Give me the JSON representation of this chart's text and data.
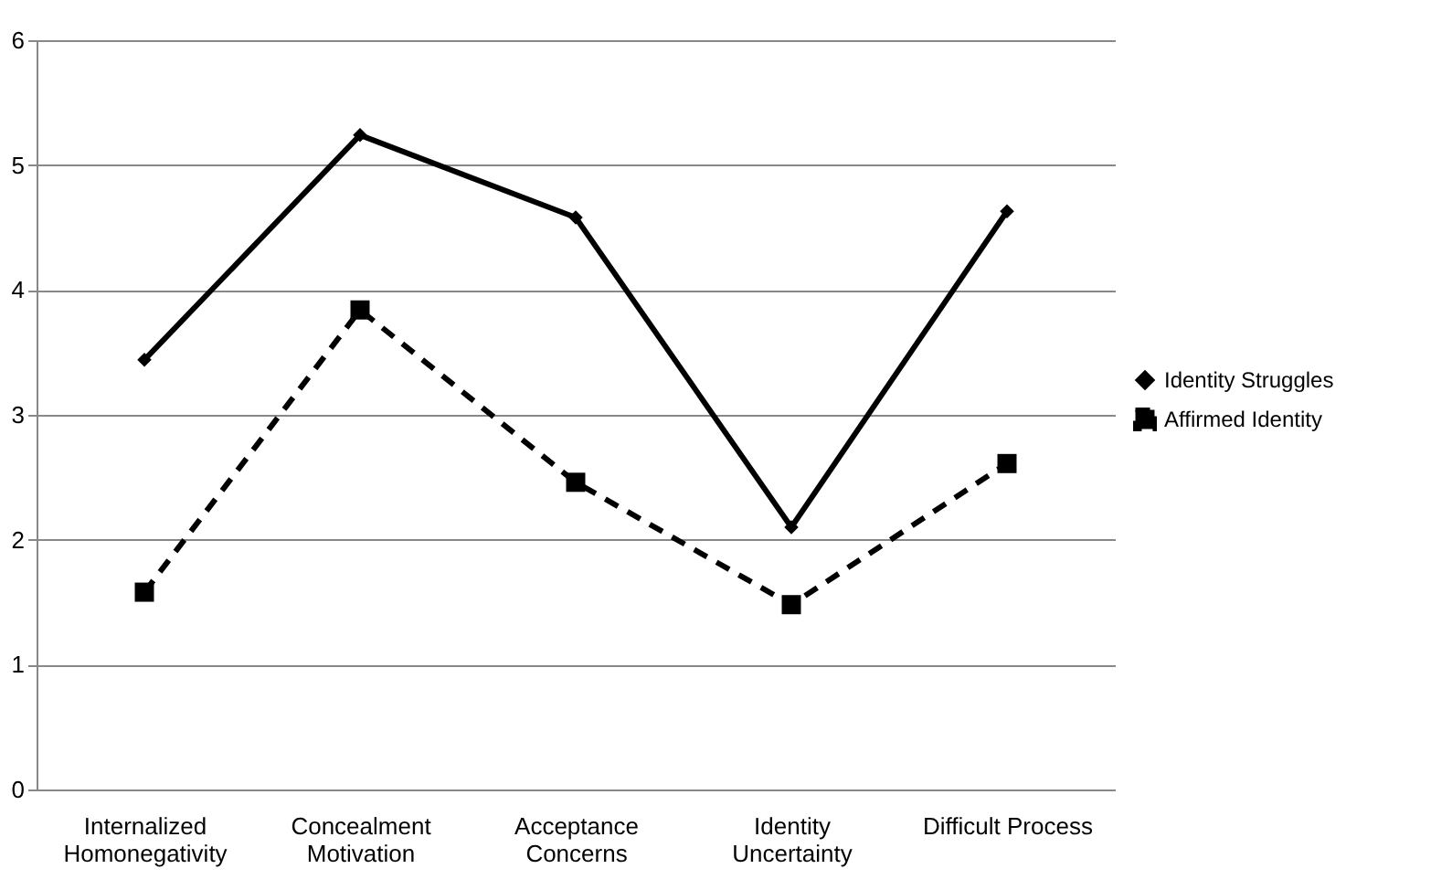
{
  "chart_data": {
    "type": "line",
    "categories": [
      "Internalized\nHomonegativity",
      "Concealment\nMotivation",
      "Acceptance\nConcerns",
      "Identity\nUncertainty",
      "Difficult Process"
    ],
    "series": [
      {
        "name": "Identity Struggles",
        "color": "#000000",
        "marker": "diamond",
        "line_style": "solid",
        "values": [
          3.44,
          5.24,
          4.58,
          2.1,
          4.63
        ]
      },
      {
        "name": "Affirmed Identity",
        "color": "#000000",
        "marker": "square",
        "line_style": "dashed",
        "values": [
          1.58,
          3.84,
          2.46,
          1.48,
          2.61
        ]
      }
    ],
    "ylim": [
      0,
      6
    ],
    "yticks": [
      0,
      1,
      2,
      3,
      4,
      5,
      6
    ],
    "grid": "y",
    "legend": "right"
  }
}
